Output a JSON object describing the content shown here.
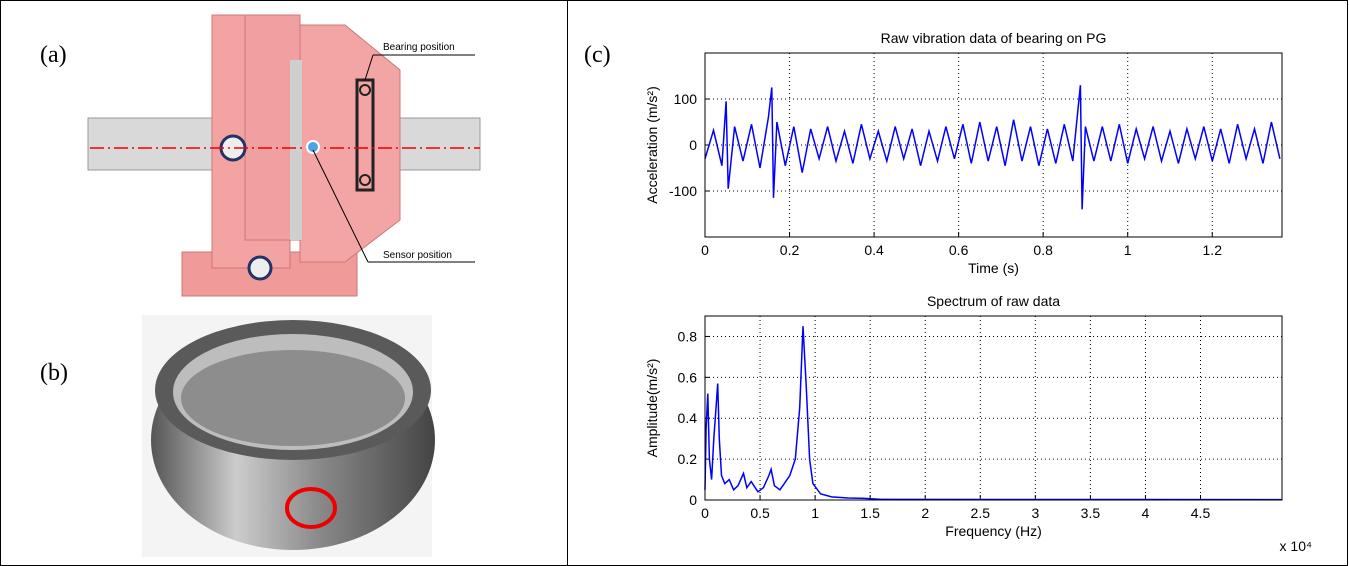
{
  "panels": {
    "a": "(a)",
    "b": "(b)",
    "c": "(c)",
    "bearing_label": "Bearing position",
    "sensor_label": "Sensor position"
  },
  "chart_data": [
    {
      "type": "line",
      "title": "Raw vibration data of bearing on PG",
      "xlabel": "Time (s)",
      "ylabel": "Acceleration (m/s²)",
      "color": "#0000ff",
      "grid": true,
      "xlim": [
        0,
        1.365
      ],
      "ylim": [
        -200,
        200
      ],
      "xticks": [
        0,
        0.2,
        0.4,
        0.6,
        0.8,
        1,
        1.2
      ],
      "yticks": [
        -100,
        0,
        100
      ],
      "x": [
        0,
        0.02,
        0.04,
        0.05,
        0.055,
        0.07,
        0.09,
        0.11,
        0.13,
        0.15,
        0.158,
        0.162,
        0.17,
        0.19,
        0.21,
        0.23,
        0.25,
        0.27,
        0.29,
        0.31,
        0.33,
        0.35,
        0.37,
        0.39,
        0.41,
        0.43,
        0.45,
        0.47,
        0.49,
        0.51,
        0.53,
        0.55,
        0.57,
        0.59,
        0.61,
        0.63,
        0.65,
        0.67,
        0.69,
        0.71,
        0.73,
        0.75,
        0.77,
        0.79,
        0.81,
        0.83,
        0.85,
        0.87,
        0.888,
        0.892,
        0.9,
        0.92,
        0.94,
        0.96,
        0.98,
        1.0,
        1.02,
        1.04,
        1.06,
        1.08,
        1.1,
        1.12,
        1.14,
        1.16,
        1.18,
        1.2,
        1.22,
        1.24,
        1.26,
        1.28,
        1.3,
        1.32,
        1.34,
        1.36
      ],
      "values": [
        -30,
        32,
        -45,
        95,
        -95,
        40,
        -35,
        45,
        -50,
        60,
        125,
        -115,
        50,
        -45,
        40,
        -60,
        35,
        -30,
        40,
        -35,
        30,
        -40,
        45,
        -30,
        30,
        -35,
        40,
        -30,
        35,
        -45,
        30,
        -35,
        40,
        -30,
        45,
        -40,
        50,
        -35,
        40,
        -45,
        55,
        -35,
        40,
        -45,
        35,
        -40,
        45,
        -35,
        130,
        -140,
        40,
        -35,
        40,
        -35,
        45,
        -40,
        35,
        -30,
        40,
        -35,
        30,
        -40,
        35,
        -30,
        40,
        -35,
        35,
        -40,
        45,
        -30,
        35,
        -40,
        50,
        -30
      ]
    },
    {
      "type": "line",
      "title": "Spectrum of raw data",
      "xlabel": "Frequency (Hz)",
      "ylabel": "Amplitude(m/s²)",
      "x_multiplier": "x 10⁴",
      "color": "#0000ff",
      "grid": true,
      "xlim": [
        0,
        52400
      ],
      "ylim": [
        0,
        0.9
      ],
      "xticks": [
        0,
        {
          "value": 5000,
          "label": "0.5"
        },
        {
          "value": 10000,
          "label": "1"
        },
        {
          "value": 15000,
          "label": "1.5"
        },
        {
          "value": 20000,
          "label": "2"
        },
        {
          "value": 25000,
          "label": "2.5"
        },
        {
          "value": 30000,
          "label": "3"
        },
        {
          "value": 35000,
          "label": "3.5"
        },
        {
          "value": 40000,
          "label": "4"
        },
        {
          "value": 45000,
          "label": "4.5"
        }
      ],
      "yticks": [
        0,
        0.2,
        0.4,
        0.6,
        0.8
      ],
      "x": [
        0,
        100,
        250,
        400,
        600,
        800,
        1000,
        1150,
        1300,
        1500,
        1800,
        2200,
        2600,
        3000,
        3500,
        3800,
        4200,
        4800,
        5300,
        5800,
        6000,
        6300,
        6800,
        7200,
        7700,
        8200,
        8600,
        8900,
        9200,
        9500,
        9800,
        10500,
        11500,
        13000,
        14500,
        16000,
        52400
      ],
      "values": [
        0.05,
        0.35,
        0.52,
        0.2,
        0.1,
        0.3,
        0.45,
        0.57,
        0.3,
        0.12,
        0.08,
        0.1,
        0.05,
        0.07,
        0.13,
        0.06,
        0.09,
        0.04,
        0.06,
        0.12,
        0.15,
        0.07,
        0.05,
        0.08,
        0.12,
        0.2,
        0.45,
        0.85,
        0.55,
        0.2,
        0.08,
        0.03,
        0.015,
        0.01,
        0.008,
        0.003,
        0.002
      ]
    }
  ]
}
